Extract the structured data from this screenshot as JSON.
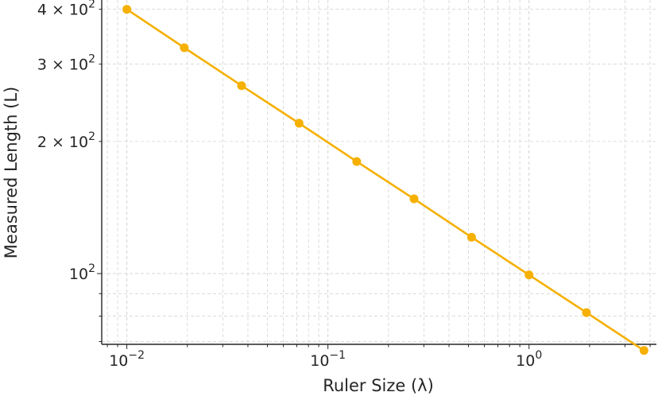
{
  "chart_data": {
    "type": "line",
    "xlabel": "Ruler Size (λ)",
    "ylabel": "Measured Length (L)",
    "xscale": "log",
    "yscale": "log",
    "xlim": [
      0.0075,
      4.3
    ],
    "ylim": [
      69,
      420
    ],
    "grid": true,
    "line_color": "#f5b000",
    "x_ticks": [
      {
        "value": 0.01,
        "base": "10",
        "exp": "−2"
      },
      {
        "value": 0.1,
        "base": "10",
        "exp": "−1"
      },
      {
        "value": 1,
        "base": "10",
        "exp": "0"
      }
    ],
    "y_ticks": [
      {
        "value": 400,
        "mant": "4 × 10",
        "exp": "2"
      },
      {
        "value": 300,
        "mant": "3 × 10",
        "exp": "2"
      },
      {
        "value": 200,
        "mant": "2 × 10",
        "exp": "2"
      },
      {
        "value": 100,
        "mant": "10",
        "exp": "2"
      }
    ],
    "series": [
      {
        "x": [
          0.01,
          0.0193,
          0.0372,
          0.0719,
          0.139,
          0.268,
          0.518,
          1.0,
          1.93,
          3.73
        ],
        "y": [
          400,
          327,
          268,
          220,
          180,
          148,
          121,
          99.3,
          81.5,
          66.8
        ]
      }
    ]
  }
}
